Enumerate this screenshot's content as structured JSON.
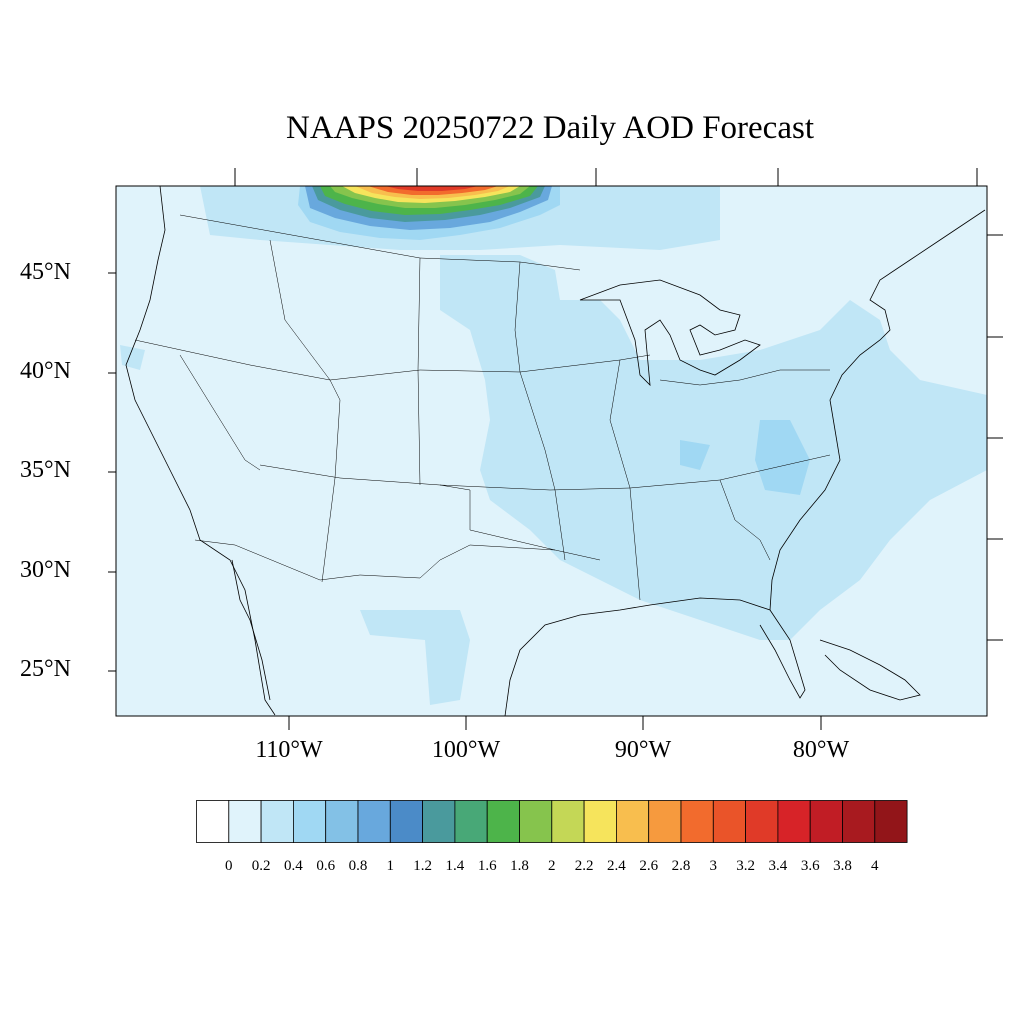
{
  "title": "NAAPS 20250722 Daily AOD Forecast",
  "lat_labels": [
    "45°N",
    "40°N",
    "35°N",
    "30°N",
    "25°N"
  ],
  "lon_labels": [
    "110°W",
    "100°W",
    "90°W",
    "80°W"
  ],
  "colorbar": {
    "labels": [
      "0",
      "0.2",
      "0.4",
      "0.6",
      "0.8",
      "1",
      "1.2",
      "1.4",
      "1.6",
      "1.8",
      "2",
      "2.2",
      "2.4",
      "2.6",
      "2.8",
      "3",
      "3.2",
      "3.4",
      "3.6",
      "3.8",
      "4"
    ],
    "colors": [
      "#ffffff",
      "#e0f3fb",
      "#c0e6f6",
      "#a0d8f3",
      "#83c1e6",
      "#68a8dd",
      "#4b8bc8",
      "#4a9a9d",
      "#48a877",
      "#4db44a",
      "#86c44d",
      "#c4d756",
      "#f6e45c",
      "#f8be4e",
      "#f69a3e",
      "#f26b2d",
      "#ea5429",
      "#e03a28",
      "#d72328",
      "#c11d25",
      "#a81a1f",
      "#921519"
    ]
  },
  "map_colors": {
    "background": "#e0f3fb",
    "aod_light": "#c0e6f6",
    "aod_mid": "#a0d8f3",
    "border": "#000000"
  }
}
